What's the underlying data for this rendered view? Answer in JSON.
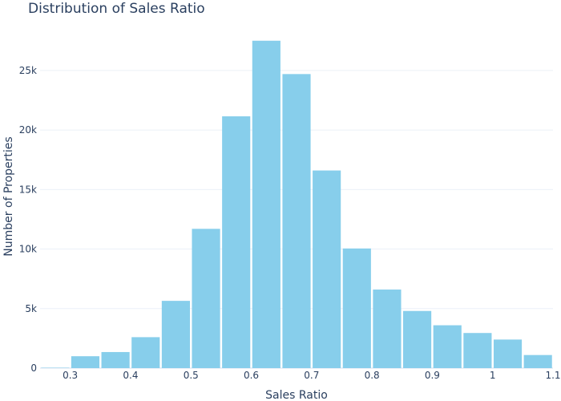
{
  "chart_data": {
    "type": "bar",
    "subtype": "histogram",
    "title": "Distribution of Sales Ratio",
    "xlabel": "Sales Ratio",
    "ylabel": "Number of Properties",
    "bin_width": 0.05,
    "bins": [
      {
        "start": 0.25,
        "end": 0.3,
        "count": 30
      },
      {
        "start": 0.3,
        "end": 0.35,
        "count": 1000
      },
      {
        "start": 0.35,
        "end": 0.4,
        "count": 1350
      },
      {
        "start": 0.4,
        "end": 0.45,
        "count": 2600
      },
      {
        "start": 0.45,
        "end": 0.5,
        "count": 5650
      },
      {
        "start": 0.5,
        "end": 0.55,
        "count": 11700
      },
      {
        "start": 0.55,
        "end": 0.6,
        "count": 21150
      },
      {
        "start": 0.6,
        "end": 0.65,
        "count": 27500
      },
      {
        "start": 0.65,
        "end": 0.7,
        "count": 24700
      },
      {
        "start": 0.7,
        "end": 0.75,
        "count": 16600
      },
      {
        "start": 0.75,
        "end": 0.8,
        "count": 10050
      },
      {
        "start": 0.8,
        "end": 0.85,
        "count": 6600
      },
      {
        "start": 0.85,
        "end": 0.9,
        "count": 4800
      },
      {
        "start": 0.9,
        "end": 0.95,
        "count": 3600
      },
      {
        "start": 0.95,
        "end": 1.0,
        "count": 2950
      },
      {
        "start": 1.0,
        "end": 1.05,
        "count": 2400
      },
      {
        "start": 1.05,
        "end": 1.1,
        "count": 1100
      }
    ],
    "xlim": [
      0.25,
      1.1
    ],
    "ylim": [
      0,
      28900
    ],
    "x_ticks": [
      {
        "value": 0.3,
        "label": "0.3"
      },
      {
        "value": 0.4,
        "label": "0.4"
      },
      {
        "value": 0.5,
        "label": "0.5"
      },
      {
        "value": 0.6,
        "label": "0.6"
      },
      {
        "value": 0.7,
        "label": "0.7"
      },
      {
        "value": 0.8,
        "label": "0.8"
      },
      {
        "value": 0.9,
        "label": "0.9"
      },
      {
        "value": 1.0,
        "label": "1"
      },
      {
        "value": 1.1,
        "label": "1.1"
      }
    ],
    "y_ticks": [
      {
        "value": 0,
        "label": "0"
      },
      {
        "value": 5000,
        "label": "5k"
      },
      {
        "value": 10000,
        "label": "10k"
      },
      {
        "value": 15000,
        "label": "15k"
      },
      {
        "value": 20000,
        "label": "20k"
      },
      {
        "value": 25000,
        "label": "25k"
      }
    ],
    "grid": true,
    "legend": "none",
    "colors": {
      "bar": "#87ceeb",
      "text": "#2a3f5f",
      "grid": "#ebf0f8"
    }
  }
}
